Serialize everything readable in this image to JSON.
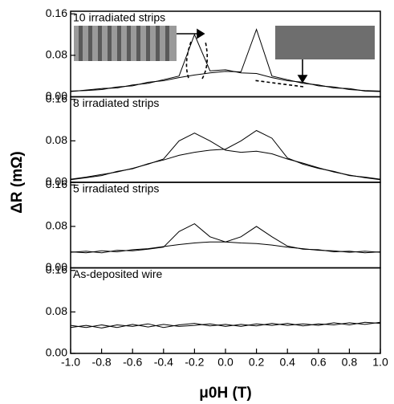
{
  "chart_data": [
    {
      "type": "line",
      "annotation": "10 irradiated strips",
      "x": [
        -1.0,
        -0.9,
        -0.8,
        -0.7,
        -0.6,
        -0.5,
        -0.4,
        -0.3,
        -0.2,
        -0.1,
        0.0,
        0.1,
        0.2,
        0.3,
        0.4,
        0.5,
        0.6,
        0.7,
        0.8,
        0.9,
        1.0
      ],
      "series": [
        {
          "color": "#000000",
          "values": [
            0.01,
            0.013,
            0.016,
            0.017,
            0.023,
            0.026,
            0.033,
            0.04,
            0.12,
            0.05,
            0.052,
            0.046,
            0.045,
            0.037,
            0.031,
            0.028,
            0.021,
            0.019,
            0.014,
            0.012,
            0.011
          ]
        },
        {
          "color": "#000000",
          "values": [
            0.011,
            0.012,
            0.014,
            0.019,
            0.021,
            0.028,
            0.031,
            0.037,
            0.042,
            0.046,
            0.049,
            0.048,
            0.13,
            0.04,
            0.033,
            0.026,
            0.023,
            0.017,
            0.016,
            0.011,
            0.01
          ]
        }
      ],
      "xlim": [
        -1.0,
        1.0
      ],
      "ylim": [
        0,
        0.165
      ],
      "yticks": [
        {
          "value": 0,
          "label": "0.00"
        },
        {
          "value": 0.08,
          "label": "0.08"
        },
        {
          "value": 0.16,
          "label": "0.16"
        }
      ]
    },
    {
      "type": "line",
      "annotation": "8 irradiated strips",
      "x": [
        -1.0,
        -0.9,
        -0.8,
        -0.7,
        -0.6,
        -0.5,
        -0.4,
        -0.3,
        -0.2,
        -0.1,
        0.0,
        0.1,
        0.2,
        0.3,
        0.4,
        0.5,
        0.6,
        0.7,
        0.8,
        0.9,
        1.0
      ],
      "series": [
        {
          "color": "#000000",
          "values": [
            0.006,
            0.01,
            0.015,
            0.02,
            0.027,
            0.035,
            0.045,
            0.08,
            0.095,
            0.08,
            0.062,
            0.058,
            0.06,
            0.055,
            0.045,
            0.037,
            0.028,
            0.02,
            0.014,
            0.009,
            0.005
          ]
        },
        {
          "color": "#000000",
          "values": [
            0.005,
            0.009,
            0.013,
            0.021,
            0.026,
            0.036,
            0.043,
            0.052,
            0.058,
            0.062,
            0.064,
            0.08,
            0.1,
            0.085,
            0.047,
            0.035,
            0.027,
            0.021,
            0.013,
            0.01,
            0.006
          ]
        }
      ],
      "xlim": [
        -1.0,
        1.0
      ],
      "ylim": [
        0,
        0.165
      ],
      "yticks": [
        {
          "value": 0,
          "label": "0.00"
        },
        {
          "value": 0.08,
          "label": "0.08"
        },
        {
          "value": 0.16,
          "label": "0.16"
        }
      ]
    },
    {
      "type": "line",
      "annotation": "5 irradiated strips",
      "x": [
        -1.0,
        -0.9,
        -0.8,
        -0.7,
        -0.6,
        -0.5,
        -0.4,
        -0.3,
        -0.2,
        -0.1,
        0.0,
        0.1,
        0.2,
        0.3,
        0.4,
        0.5,
        0.6,
        0.7,
        0.8,
        0.9,
        1.0
      ],
      "series": [
        {
          "color": "#000000",
          "values": [
            0.03,
            0.032,
            0.029,
            0.034,
            0.033,
            0.036,
            0.04,
            0.07,
            0.085,
            0.06,
            0.05,
            0.048,
            0.047,
            0.044,
            0.04,
            0.037,
            0.034,
            0.033,
            0.03,
            0.032,
            0.03
          ]
        },
        {
          "color": "#000000",
          "values": [
            0.031,
            0.029,
            0.033,
            0.031,
            0.035,
            0.037,
            0.041,
            0.045,
            0.048,
            0.05,
            0.05,
            0.06,
            0.08,
            0.06,
            0.042,
            0.036,
            0.035,
            0.031,
            0.032,
            0.029,
            0.031
          ]
        }
      ],
      "xlim": [
        -1.0,
        1.0
      ],
      "ylim": [
        0,
        0.165
      ],
      "yticks": [
        {
          "value": 0,
          "label": "0.00"
        },
        {
          "value": 0.08,
          "label": "0.08"
        },
        {
          "value": 0.16,
          "label": "0.16"
        }
      ]
    },
    {
      "type": "line",
      "annotation": "As-deposited wire",
      "x": [
        -1.0,
        -0.9,
        -0.8,
        -0.7,
        -0.6,
        -0.5,
        -0.4,
        -0.3,
        -0.2,
        -0.1,
        0.0,
        0.1,
        0.2,
        0.3,
        0.4,
        0.5,
        0.6,
        0.7,
        0.8,
        0.9,
        1.0
      ],
      "series": [
        {
          "color": "#000000",
          "values": [
            0.05,
            0.054,
            0.049,
            0.055,
            0.052,
            0.057,
            0.05,
            0.055,
            0.058,
            0.053,
            0.056,
            0.052,
            0.057,
            0.054,
            0.058,
            0.053,
            0.057,
            0.055,
            0.059,
            0.056,
            0.06
          ]
        },
        {
          "color": "#000000",
          "values": [
            0.054,
            0.05,
            0.055,
            0.05,
            0.056,
            0.051,
            0.056,
            0.052,
            0.054,
            0.057,
            0.052,
            0.056,
            0.053,
            0.058,
            0.054,
            0.057,
            0.054,
            0.059,
            0.055,
            0.06,
            0.058
          ]
        }
      ],
      "xlim": [
        -1.0,
        1.0
      ],
      "ylim": [
        0,
        0.165
      ],
      "yticks": [
        {
          "value": 0,
          "label": "0.00"
        },
        {
          "value": 0.08,
          "label": "0.08"
        },
        {
          "value": 0.16,
          "label": "0.16"
        }
      ],
      "xticks": [
        {
          "value": -1.0,
          "label": "-1.0"
        },
        {
          "value": -0.8,
          "label": "-0.8"
        },
        {
          "value": -0.6,
          "label": "-0.6"
        },
        {
          "value": -0.4,
          "label": "-0.4"
        },
        {
          "value": -0.2,
          "label": "-0.2"
        },
        {
          "value": 0.0,
          "label": "0.0"
        },
        {
          "value": 0.2,
          "label": "0.2"
        },
        {
          "value": 0.4,
          "label": "0.4"
        },
        {
          "value": 0.6,
          "label": "0.6"
        },
        {
          "value": 0.8,
          "label": "0.8"
        },
        {
          "value": 1.0,
          "label": "1.0"
        }
      ],
      "xlabel": "μ0H (T)",
      "ylabel": "ΔR (mΩ)"
    }
  ]
}
